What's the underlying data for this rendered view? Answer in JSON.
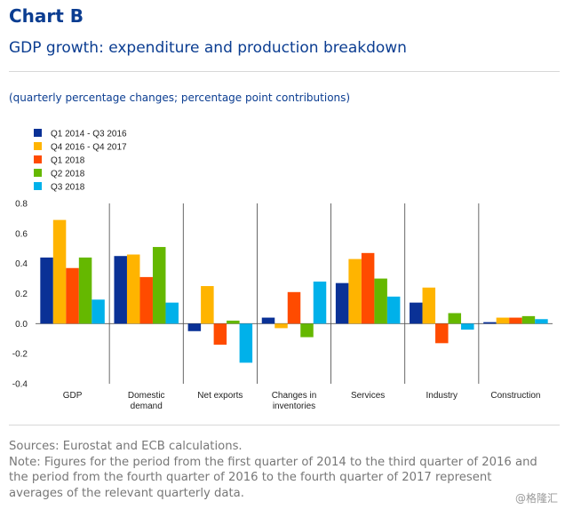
{
  "header": {
    "title": "Chart B",
    "subtitle": "GDP growth: expenditure and production breakdown",
    "units": "(quarterly percentage changes; percentage point contributions)"
  },
  "footer": {
    "sources": "Sources: Eurostat and ECB calculations.",
    "note": "Note: Figures for the period from the first quarter of 2014 to the third quarter of 2016 and the period from the fourth quarter of 2016 to the fourth quarter of 2017 represent averages of the relevant quarterly data."
  },
  "watermark": "@格隆汇",
  "chart_data": {
    "type": "bar",
    "title": "GDP growth: expenditure and production breakdown",
    "subtitle": "(quarterly percentage changes; percentage point contributions)",
    "xlabel": "",
    "ylabel": "",
    "ylim": [
      -0.4,
      0.8
    ],
    "yticks": [
      "0.8",
      "0.6",
      "0.4",
      "0.2",
      "0.0",
      "-0.2",
      "-0.4"
    ],
    "grid": false,
    "legend_position": "top-left",
    "categories": [
      [
        "GDP"
      ],
      [
        "Domestic",
        "demand"
      ],
      [
        "Net exports"
      ],
      [
        "Changes in",
        "inventories"
      ],
      [
        "Services"
      ],
      [
        "Industry"
      ],
      [
        "Construction"
      ]
    ],
    "series": [
      {
        "name": "Q1 2014 - Q3 2016",
        "color": "#0a3196",
        "values": [
          0.44,
          0.45,
          -0.05,
          0.04,
          0.27,
          0.14,
          0.01
        ]
      },
      {
        "name": "Q4 2016 - Q4 2017",
        "color": "#ffb400",
        "values": [
          0.69,
          0.46,
          0.25,
          -0.03,
          0.43,
          0.24,
          0.04
        ]
      },
      {
        "name": "Q1 2018",
        "color": "#ff4b00",
        "values": [
          0.37,
          0.31,
          -0.14,
          0.21,
          0.47,
          -0.13,
          0.04
        ]
      },
      {
        "name": "Q2 2018",
        "color": "#65b800",
        "values": [
          0.44,
          0.51,
          0.02,
          -0.09,
          0.3,
          0.07,
          0.05
        ]
      },
      {
        "name": "Q3 2018",
        "color": "#00b1ea",
        "values": [
          0.16,
          0.14,
          -0.26,
          0.28,
          0.18,
          -0.04,
          0.03
        ]
      }
    ]
  }
}
